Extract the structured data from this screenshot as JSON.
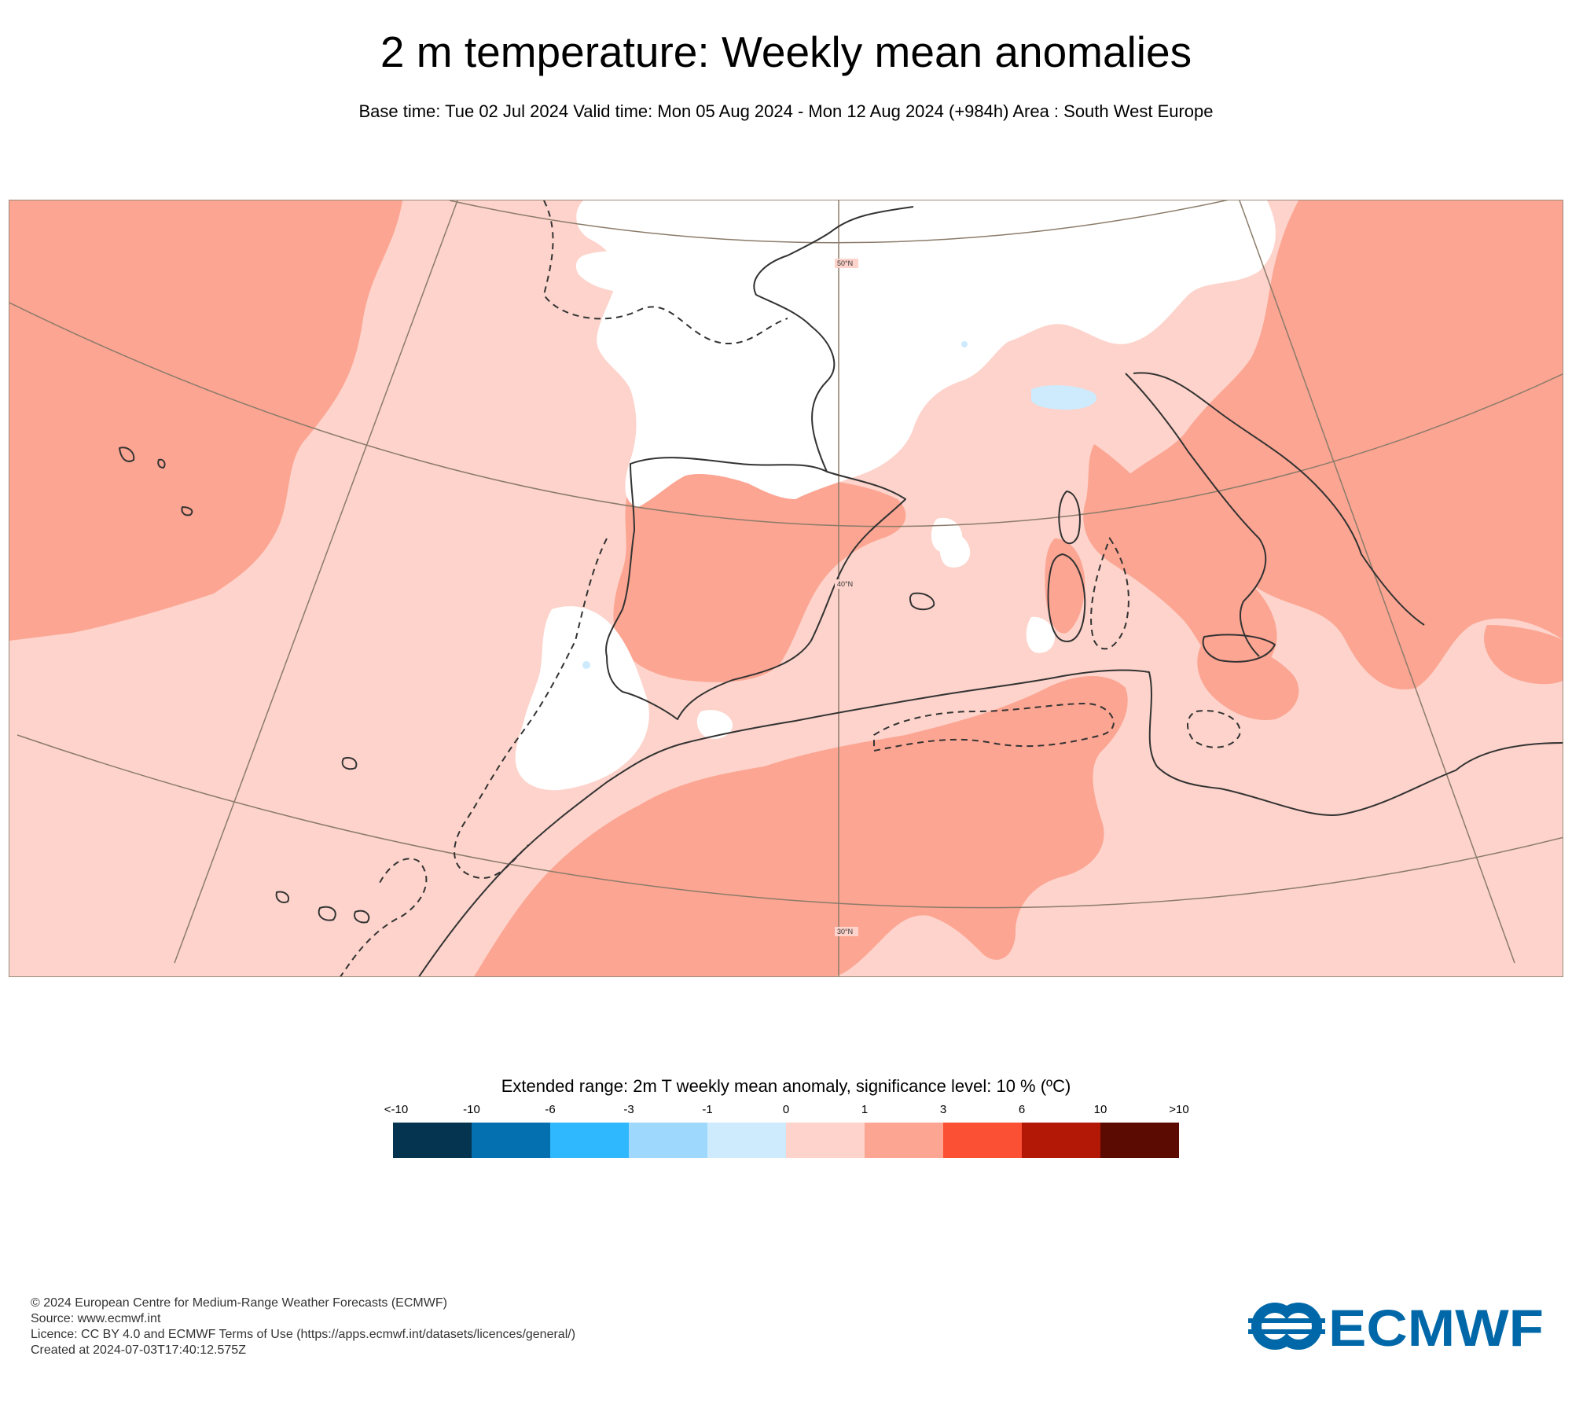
{
  "title": "2 m temperature: Weekly mean anomalies",
  "subtitle": "Base time: Tue 02 Jul 2024 Valid time: Mon 05 Aug 2024 - Mon 12 Aug 2024 (+984h) Area : South West Europe",
  "map": {
    "area": "South West Europe",
    "latitude_labels": [
      "50°N",
      "40°N",
      "30°N"
    ],
    "significance_contour": "dashed"
  },
  "legend": {
    "title": "Extended range: 2m T weekly mean anomaly, significance level: 10 % (ºC)",
    "ticks": [
      "<-10",
      "-10",
      "-6",
      "-3",
      "-1",
      "0",
      "1",
      "3",
      "6",
      "10",
      ">10"
    ],
    "colors": [
      "#04344f",
      "#0570b0",
      "#2fb8fd",
      "#9ed9fd",
      "#cdebfd",
      "#fdd3cb",
      "#fca592",
      "#fb5033",
      "#b21805",
      "#5c0b02"
    ]
  },
  "footer": {
    "line1": "© 2024 European Centre for Medium-Range Weather Forecasts (ECMWF)",
    "line2": "Source: www.ecmwf.int",
    "line3": "Licence: CC BY 4.0 and ECMWF Terms of Use (https://apps.ecmwf.int/datasets/licences/general/)",
    "line4": "Created at 2024-07-03T17:40:12.575Z"
  },
  "logo": {
    "text": "ECMWF",
    "color": "#0068a8"
  }
}
